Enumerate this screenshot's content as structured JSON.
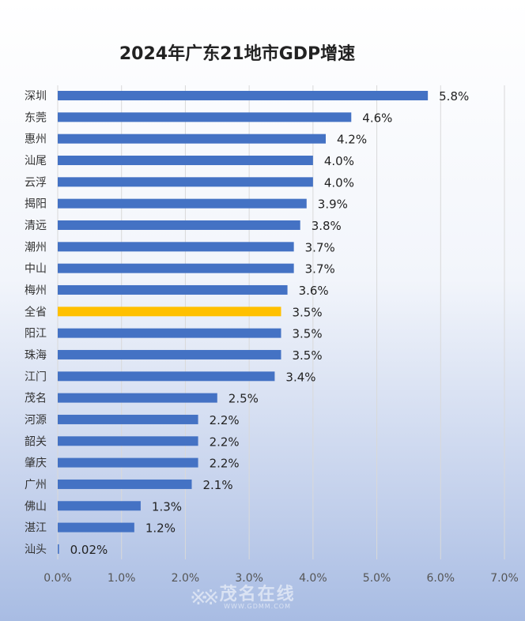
{
  "chart_data": {
    "type": "bar",
    "orientation": "horizontal",
    "title": "2024年广东21地市GDP增速",
    "categories": [
      "深圳",
      "东莞",
      "惠州",
      "汕尾",
      "云浮",
      "揭阳",
      "清远",
      "潮州",
      "中山",
      "梅州",
      "全省",
      "阳江",
      "珠海",
      "江门",
      "茂名",
      "河源",
      "韶关",
      "肇庆",
      "广州",
      "佛山",
      "湛江",
      "汕头"
    ],
    "values": [
      5.8,
      4.6,
      4.2,
      4.0,
      4.0,
      3.9,
      3.8,
      3.7,
      3.7,
      3.6,
      3.5,
      3.5,
      3.5,
      3.4,
      2.5,
      2.2,
      2.2,
      2.2,
      2.1,
      1.3,
      1.2,
      0.02
    ],
    "data_labels": [
      "5.8%",
      "4.6%",
      "4.2%",
      "4.0%",
      "4.0%",
      "3.9%",
      "3.8%",
      "3.7%",
      "3.7%",
      "3.6%",
      "3.5%",
      "3.5%",
      "3.5%",
      "3.4%",
      "2.5%",
      "2.2%",
      "2.2%",
      "2.2%",
      "2.1%",
      "1.3%",
      "1.2%",
      "0.02%"
    ],
    "highlight_category": "全省",
    "xlim": [
      0,
      7.0
    ],
    "xticks": [
      "0.0%",
      "1.0%",
      "2.0%",
      "3.0%",
      "4.0%",
      "5.0%",
      "6.0%",
      "7.0%"
    ],
    "xlabel": "",
    "ylabel": "",
    "grid": "vertical",
    "colors": {
      "bar": "#4472c4",
      "highlight": "#ffc000",
      "grid": "#d9d9d9"
    }
  },
  "watermark": {
    "logo": "※※",
    "name": "茂名在线",
    "url": "WWW.GDMM.COM"
  }
}
